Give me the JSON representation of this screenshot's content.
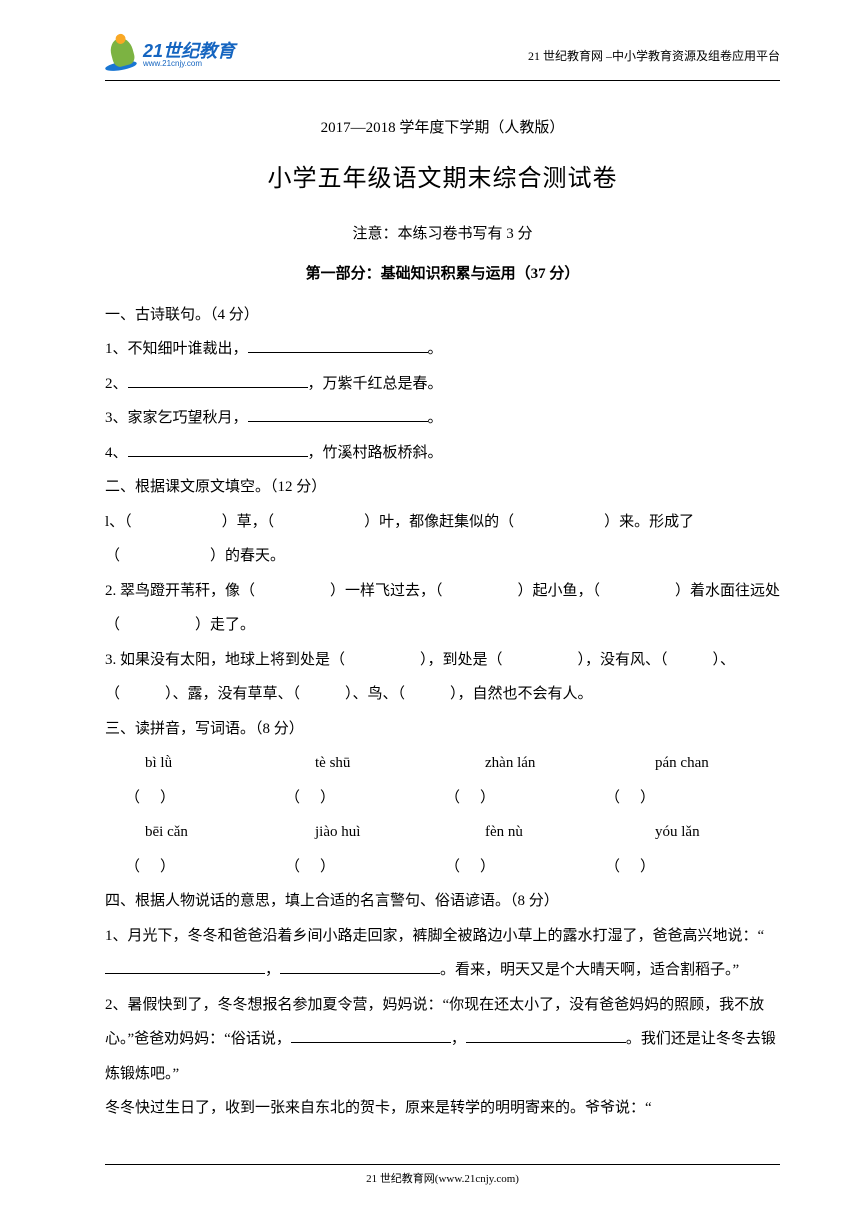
{
  "header": {
    "logo_main": "21世纪教育",
    "logo_url": "www.21cnjy.com",
    "right_text": "21 世纪教育网 –中小学教育资源及组卷应用平台"
  },
  "title": {
    "small": "2017—2018 学年度下学期（人教版）",
    "main": "小学五年级语文期末综合测试卷",
    "note": "注意：本练习卷书写有 3 分",
    "section": "第一部分：基础知识积累与运用（37 分）"
  },
  "q1": {
    "heading": "一、古诗联句。（4 分）",
    "line1a": "1、不知细叶谁裁出，",
    "line1b": "。",
    "line2a": "2、",
    "line2b": "，万紫千红总是春。",
    "line3a": "3、家家乞巧望秋月，",
    "line3b": "。",
    "line4a": "4、",
    "line4b": "，竹溪村路板桥斜。"
  },
  "q2": {
    "heading": "二、根据课文原文填空。（12 分）",
    "line1": "l、（　　　　　　）草，（　　　　　　）叶，都像赶集似的（　　　　　　）来。形成了（　　　　　　）的春天。",
    "line2": "2. 翠鸟蹬开苇秆，像（　　　　　）一样飞过去，（　　　　　）起小鱼，（　　　　　）着水面往远处（　　　　　）走了。",
    "line3": "3. 如果没有太阳，地球上将到处是（　　　　　），到处是（　　　　　），没有风、（　　　）、（　　　）、露，没有草草、（　　　）、鸟、（　　　），自然也不会有人。"
  },
  "q3": {
    "heading": "三、读拼音，写词语。（8 分）",
    "pinyin_row1": [
      "bì lǜ",
      "tè shū",
      "zhàn lán",
      "pán chan"
    ],
    "pinyin_row2": [
      "bēi cǎn",
      "jiào huì",
      "fèn nù",
      "yóu lǎn"
    ]
  },
  "q4": {
    "heading": "四、根据人物说话的意思，填上合适的名言警句、俗语谚语。（8 分）",
    "line1a": "1、月光下，冬冬和爸爸沿着乡间小路走回家，裤脚全被路边小草上的露水打湿了，爸爸高兴地说：“",
    "line1b": "，",
    "line1c": "。看来，明天又是个大晴天啊，适合割稻子。”",
    "line2a": "2、暑假快到了，冬冬想报名参加夏令营，妈妈说：“你现在还太小了，没有爸爸妈妈的照顾，我不放心。”爸爸劝妈妈：“俗话说，",
    "line2b": "，",
    "line2c": "。我们还是让冬冬去锻炼锻炼吧。”",
    "line3": "冬冬快过生日了，收到一张来自东北的贺卡，原来是转学的明明寄来的。爷爷说：“"
  },
  "footer": {
    "text": "21 世纪教育网(www.21cnjy.com)"
  }
}
